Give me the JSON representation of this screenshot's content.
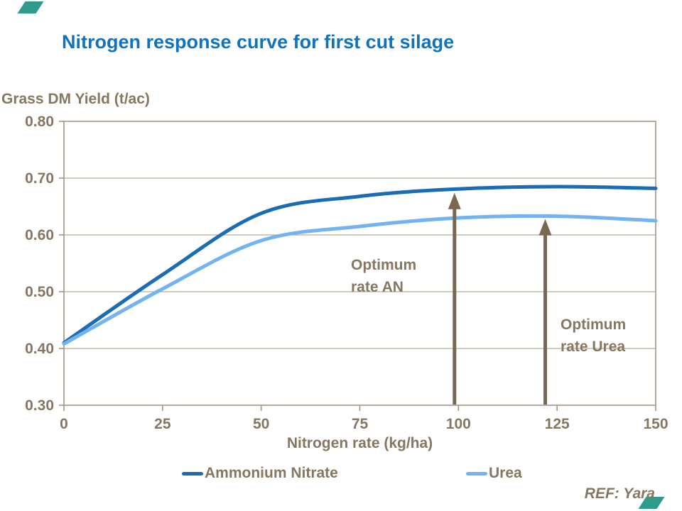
{
  "page": {
    "title": "Nitrogen response curve for first cut silage",
    "ref": "REF: Yara",
    "accent_color": "#2f9b8c",
    "title_color": "#0f74bd"
  },
  "chart_data": {
    "type": "line",
    "title": "Nitrogen response curve for first cut silage",
    "ylabel": "Grass DM Yield (t/ac)",
    "xlabel": "Nitrogen rate (kg/ha)",
    "x": [
      0,
      25,
      50,
      75,
      100,
      125,
      150
    ],
    "xticks": [
      "0",
      "25",
      "50",
      "75",
      "100",
      "125",
      "150"
    ],
    "yticks": [
      "0.80",
      "0.70",
      "0.60",
      "0.50",
      "0.40",
      "0.30"
    ],
    "xlim": [
      0,
      150
    ],
    "ylim": [
      0.3,
      0.8
    ],
    "grid": "horizontal",
    "legend_position": "bottom",
    "series": [
      {
        "name": "Ammonium Nitrate",
        "color": "#1a6cb5",
        "values": [
          0.41,
          0.53,
          0.638,
          0.668,
          0.681,
          0.685,
          0.682
        ]
      },
      {
        "name": "Urea",
        "color": "#73b3f0",
        "values": [
          0.408,
          0.505,
          0.59,
          0.615,
          0.63,
          0.633,
          0.625
        ]
      }
    ],
    "annotations": [
      {
        "line1": "Optimum",
        "line2": "rate AN",
        "x": 99,
        "tip_value": 0.674
      },
      {
        "line1": "Optimum",
        "line2": "rate Urea",
        "x": 122,
        "tip_value": 0.628
      }
    ],
    "axis_color": "#a39684",
    "grid_color": "#b8ac9b",
    "text_color": "#877660",
    "arrow_color": "#7a6951"
  }
}
